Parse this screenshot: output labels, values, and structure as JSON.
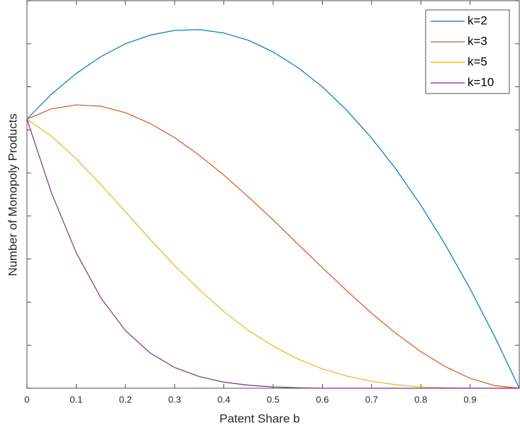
{
  "chart_data": {
    "type": "line",
    "xlabel": "Patent Share b",
    "ylabel": "Number of Monopoly Products",
    "x": [
      0,
      0.05,
      0.1,
      0.15,
      0.2,
      0.25,
      0.3,
      0.35,
      0.4,
      0.45,
      0.5,
      0.55,
      0.6,
      0.65,
      0.7,
      0.75,
      0.8,
      0.85,
      0.9,
      0.95,
      1
    ],
    "series": [
      {
        "name": "k=2",
        "color": "#0072bd",
        "values": [
          6.25,
          6.83,
          7.31,
          7.7,
          8.0,
          8.2,
          8.31,
          8.33,
          8.25,
          8.08,
          7.81,
          7.45,
          7.0,
          6.45,
          5.81,
          5.08,
          4.25,
          3.33,
          2.31,
          1.2,
          0
        ]
      },
      {
        "name": "k=3",
        "color": "#d95319",
        "values": [
          6.25,
          6.49,
          6.58,
          6.55,
          6.4,
          6.15,
          5.82,
          5.41,
          4.95,
          4.44,
          3.91,
          3.35,
          2.8,
          2.26,
          1.74,
          1.27,
          0.85,
          0.5,
          0.23,
          0.06,
          0
        ]
      },
      {
        "name": "k=5",
        "color": "#edb120",
        "values": [
          6.25,
          5.85,
          5.33,
          4.73,
          4.1,
          3.46,
          2.85,
          2.29,
          1.78,
          1.34,
          0.98,
          0.68,
          0.45,
          0.28,
          0.16,
          0.08,
          0.03,
          0.01,
          0,
          0,
          0
        ]
      },
      {
        "name": "k=10",
        "color": "#7e2f8e",
        "values": [
          6.25,
          4.53,
          3.15,
          2.1,
          1.34,
          0.82,
          0.48,
          0.27,
          0.14,
          0.07,
          0.03,
          0.01,
          0,
          0,
          0,
          0,
          0,
          0,
          0,
          0,
          0
        ]
      }
    ],
    "xlim": [
      0,
      1
    ],
    "xticks": [
      0,
      0.1,
      0.2,
      0.3,
      0.4,
      0.5,
      0.6,
      0.7,
      0.8,
      0.9
    ],
    "ylim": [
      0,
      9
    ],
    "yticks": [
      0,
      1,
      2,
      3,
      4,
      5,
      6,
      7,
      8,
      9
    ],
    "show_ytick_labels": false,
    "grid": false,
    "legend": "upper right"
  }
}
